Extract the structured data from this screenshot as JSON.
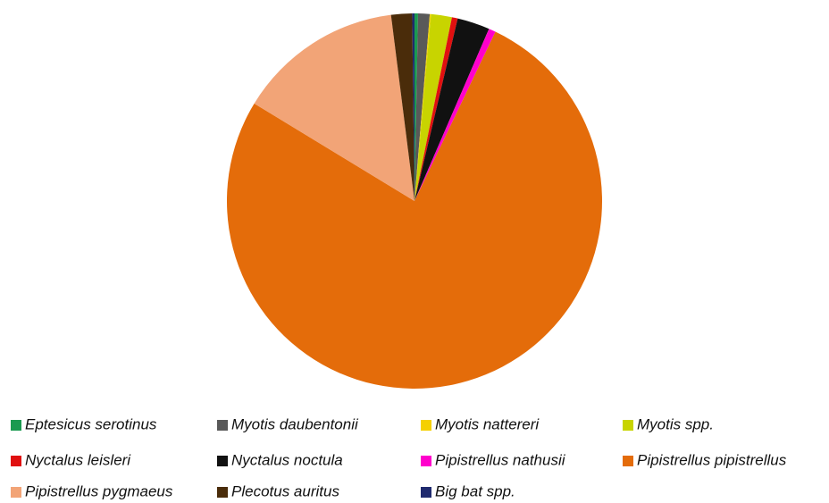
{
  "chart_data": {
    "type": "pie",
    "categories": [
      "Eptesicus serotinus",
      "Myotis daubentonii",
      "Myotis nattereri",
      "Myotis spp.",
      "Nyctalus leisleri",
      "Nyctalus noctula",
      "Pipistrellus nathusii",
      "Pipistrellus pipistrellus",
      "Pipistrellus pygmaeus",
      "Plecotus auritus",
      "Big bat spp."
    ],
    "values": [
      0.3,
      1,
      0.1,
      1.8,
      0.5,
      2.8,
      0.6,
      76.6,
      14.3,
      1.8,
      0.2
    ],
    "colors": [
      "#1a9a50",
      "#595959",
      "#f5d000",
      "#c8d400",
      "#e01010",
      "#111111",
      "#ff00cc",
      "#e46c0a",
      "#f2a477",
      "#4a2c0a",
      "#1f2a6e"
    ],
    "legend": "bottom"
  }
}
